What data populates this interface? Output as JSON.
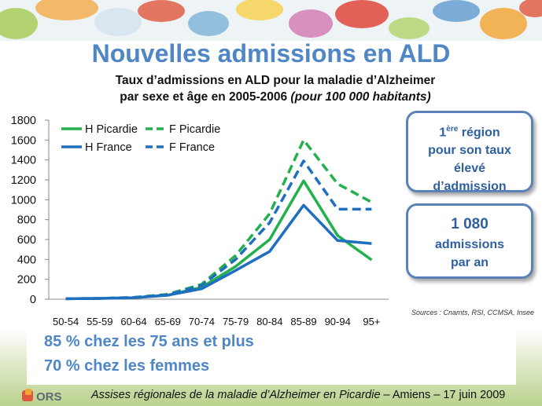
{
  "title": "Nouvelles admissions en ALD",
  "subtitle": {
    "line1": "Taux d’admissions en ALD pour la maladie d’Alzheimer",
    "line2": "par sexe et âge en 2005-2006",
    "line2_italic": "(pour 100 000 habitants)"
  },
  "callout1": {
    "ordinal": "1",
    "superscript": "ère",
    "line1_rest": " région",
    "line2": "pour son taux",
    "line3": "élevé",
    "line4": "d’admission"
  },
  "callout2": {
    "value": "1 080",
    "line2": "admissions",
    "line3": "par an"
  },
  "sources": "Sources : Cnamts, RSI, CCMSA, Insee",
  "facts": [
    "85 % chez les 75 ans et plus",
    "70 % chez les femmes"
  ],
  "footer": {
    "logo_text": "ORS",
    "italic": "Assises régionales de la maladie d’Alzheimer en Picardie",
    "rest": " – Amiens – 17 juin 2009"
  },
  "colors": {
    "green": "#22b14c",
    "blue": "#1f6fc0",
    "title_blue": "#4f86c6"
  },
  "chart_data": {
    "type": "line",
    "categories": [
      "50-54",
      "55-59",
      "60-64",
      "65-69",
      "70-74",
      "75-79",
      "80-84",
      "85-89",
      "90-94",
      "95+"
    ],
    "ylim": [
      0,
      1800
    ],
    "yticks": [
      0,
      200,
      400,
      600,
      800,
      1000,
      1200,
      1400,
      1600,
      1800
    ],
    "legend_position": "top-left",
    "grid": false,
    "series": [
      {
        "name": "H Picardie",
        "color": "#22b14c",
        "dashed": false,
        "values": [
          5,
          8,
          15,
          40,
          120,
          330,
          600,
          1190,
          640,
          395
        ]
      },
      {
        "name": "F Picardie",
        "color": "#22b14c",
        "dashed": true,
        "values": [
          5,
          8,
          18,
          50,
          150,
          440,
          860,
          1600,
          1160,
          975
        ]
      },
      {
        "name": "H France",
        "color": "#1f6fc0",
        "dashed": false,
        "values": [
          5,
          8,
          15,
          40,
          105,
          290,
          480,
          945,
          590,
          560
        ]
      },
      {
        "name": "F France",
        "color": "#1f6fc0",
        "dashed": true,
        "values": [
          5,
          8,
          17,
          45,
          140,
          400,
          770,
          1390,
          905,
          905
        ]
      }
    ]
  }
}
